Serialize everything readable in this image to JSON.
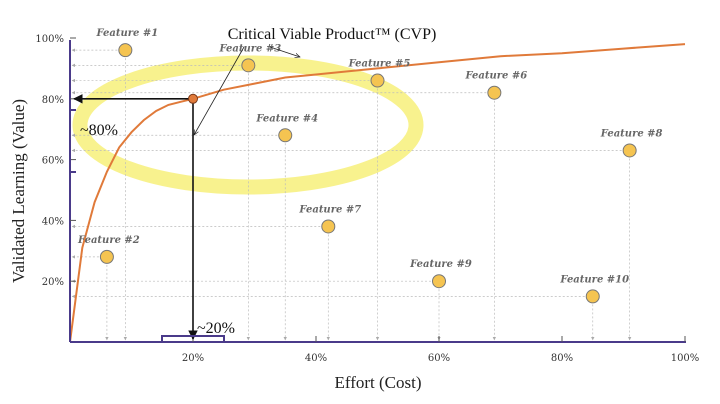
{
  "chart_data": {
    "type": "scatter",
    "title": "",
    "xlabel": "Effort (Cost)",
    "ylabel": "Validated Learning (Value)",
    "xlim": [
      0,
      100
    ],
    "ylim": [
      0,
      100
    ],
    "x_ticks": [
      {
        "value": 20,
        "label": "20%"
      },
      {
        "value": 40,
        "label": "40%"
      },
      {
        "value": 60,
        "label": "60%"
      },
      {
        "value": 80,
        "label": "80%"
      },
      {
        "value": 100,
        "label": "100%"
      }
    ],
    "y_ticks": [
      {
        "value": 20,
        "label": "20%"
      },
      {
        "value": 40,
        "label": "40%"
      },
      {
        "value": 60,
        "label": "60%"
      },
      {
        "value": 80,
        "label": "80%"
      },
      {
        "value": 100,
        "label": "100%"
      }
    ],
    "curve": {
      "name": "value curve",
      "color": "#e07a3a",
      "x": [
        0,
        2,
        4,
        6,
        8,
        10,
        12,
        14,
        16,
        18,
        20,
        25,
        30,
        35,
        40,
        50,
        60,
        70,
        80,
        90,
        100
      ],
      "y": [
        0,
        31,
        46,
        56,
        64,
        69,
        73,
        76,
        78,
        79,
        80,
        83,
        85,
        87,
        88,
        90,
        92,
        94,
        95,
        96.5,
        98
      ]
    },
    "cvp_point": {
      "x": 20,
      "y": 80,
      "color": "#e07a3a"
    },
    "features": [
      {
        "label": "Feature #1",
        "x": 9,
        "y": 96
      },
      {
        "label": "Feature #2",
        "x": 6,
        "y": 28
      },
      {
        "label": "Feature #3",
        "x": 29,
        "y": 91
      },
      {
        "label": "Feature #4",
        "x": 35,
        "y": 68
      },
      {
        "label": "Feature #5",
        "x": 50,
        "y": 86
      },
      {
        "label": "Feature #6",
        "x": 69,
        "y": 82
      },
      {
        "label": "Feature #7",
        "x": 42,
        "y": 38
      },
      {
        "label": "Feature #8",
        "x": 91,
        "y": 63
      },
      {
        "label": "Feature #9",
        "x": 60,
        "y": 20
      },
      {
        "label": "Feature #10",
        "x": 85,
        "y": 15
      }
    ],
    "feature_color": "#f5c451",
    "highlight_color": "#f7f07a"
  },
  "annotations": {
    "cvp_label": "Critical Viable Product™ (CVP)",
    "value_marker": "~80%",
    "effort_marker": "~20%"
  }
}
